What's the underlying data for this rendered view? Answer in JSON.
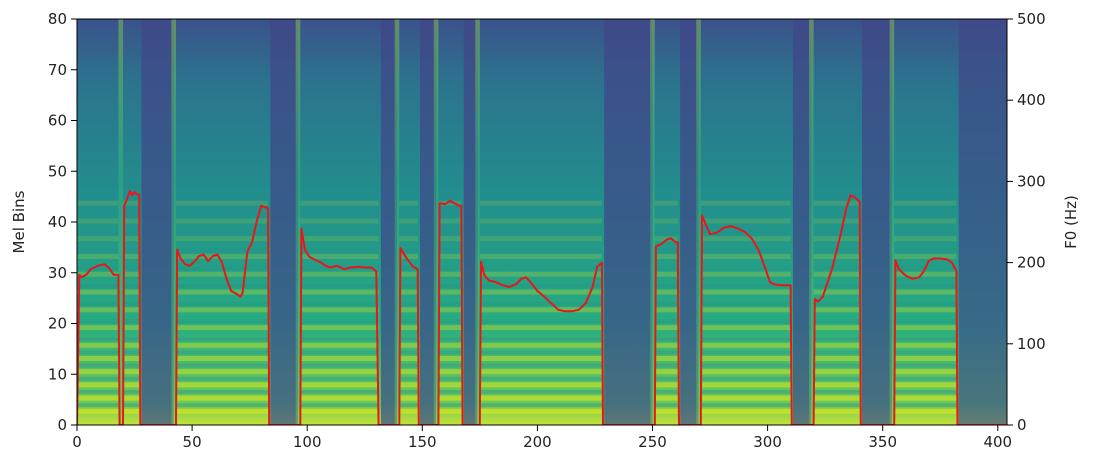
{
  "chart_data": {
    "type": "heatmap",
    "title": "",
    "xlabel": "",
    "ylabel": "Mel Bins",
    "y2label": "F0 (Hz)",
    "xlim": [
      0,
      404
    ],
    "ylim": [
      0,
      80
    ],
    "y2lim": [
      0,
      500
    ],
    "xticks": [
      "0",
      "50",
      "100",
      "150",
      "200",
      "250",
      "300",
      "350",
      "400"
    ],
    "yticks": [
      "0",
      "10",
      "20",
      "30",
      "40",
      "50",
      "60",
      "70",
      "80"
    ],
    "y2ticks": [
      "0",
      "100",
      "200",
      "300",
      "400",
      "500"
    ],
    "colormap": "viridis",
    "line_color": "#e8161a",
    "grid": false,
    "legend": "none",
    "voiced_segments": [
      {
        "start": 0,
        "end": 18
      },
      {
        "start": 20,
        "end": 27
      },
      {
        "start": 43,
        "end": 83
      },
      {
        "start": 97,
        "end": 131
      },
      {
        "start": 140,
        "end": 148
      },
      {
        "start": 157,
        "end": 167
      },
      {
        "start": 175,
        "end": 228
      },
      {
        "start": 251,
        "end": 261
      },
      {
        "start": 271,
        "end": 310
      },
      {
        "start": 320,
        "end": 340
      },
      {
        "start": 355,
        "end": 382
      }
    ],
    "series": [
      {
        "values": [
          [
            0,
            0
          ],
          [
            1,
            185
          ],
          [
            2,
            182
          ],
          [
            4,
            185
          ],
          [
            6,
            192
          ],
          [
            9,
            196
          ],
          [
            12,
            198
          ],
          [
            14,
            193
          ],
          [
            16,
            185
          ],
          [
            18,
            185
          ],
          [
            18.5,
            0
          ],
          [
            19,
            0
          ],
          [
            20,
            0
          ],
          [
            20.5,
            270
          ],
          [
            22,
            280
          ],
          [
            23,
            288
          ],
          [
            24,
            283
          ],
          [
            25,
            287
          ],
          [
            26,
            284
          ],
          [
            27,
            284
          ],
          [
            27.5,
            0
          ],
          [
            43,
            0
          ],
          [
            43.5,
            216
          ],
          [
            45,
            205
          ],
          [
            47,
            198
          ],
          [
            49,
            196
          ],
          [
            51,
            201
          ],
          [
            53,
            208
          ],
          [
            55,
            210
          ],
          [
            57,
            202
          ],
          [
            59,
            208
          ],
          [
            61,
            210
          ],
          [
            63,
            200
          ],
          [
            65,
            180
          ],
          [
            67,
            165
          ],
          [
            69,
            162
          ],
          [
            71,
            158
          ],
          [
            72,
            163
          ],
          [
            74,
            213
          ],
          [
            76,
            225
          ],
          [
            78,
            250
          ],
          [
            80,
            270
          ],
          [
            82,
            268
          ],
          [
            83,
            267
          ],
          [
            83.5,
            0
          ],
          [
            97,
            0
          ],
          [
            97.5,
            242
          ],
          [
            99,
            216
          ],
          [
            101,
            207
          ],
          [
            103,
            204
          ],
          [
            106,
            200
          ],
          [
            108,
            196
          ],
          [
            110,
            194
          ],
          [
            113,
            196
          ],
          [
            116,
            192
          ],
          [
            119,
            194
          ],
          [
            122,
            195
          ],
          [
            125,
            194
          ],
          [
            128,
            194
          ],
          [
            130,
            189
          ],
          [
            131,
            0
          ],
          [
            140,
            0
          ],
          [
            140.5,
            218
          ],
          [
            143,
            206
          ],
          [
            146,
            195
          ],
          [
            148,
            192
          ],
          [
            148.5,
            0
          ],
          [
            157,
            0
          ],
          [
            157.5,
            273
          ],
          [
            160,
            272
          ],
          [
            162,
            276
          ],
          [
            164,
            273
          ],
          [
            166,
            270
          ],
          [
            167,
            270
          ],
          [
            167.5,
            0
          ],
          [
            175,
            0
          ],
          [
            175.5,
            201
          ],
          [
            177,
            184
          ],
          [
            179,
            178
          ],
          [
            182,
            176
          ],
          [
            185,
            172
          ],
          [
            188,
            170
          ],
          [
            191,
            174
          ],
          [
            193,
            180
          ],
          [
            195,
            182
          ],
          [
            197,
            176
          ],
          [
            200,
            165
          ],
          [
            203,
            158
          ],
          [
            206,
            150
          ],
          [
            209,
            142
          ],
          [
            212,
            140
          ],
          [
            215,
            140
          ],
          [
            218,
            142
          ],
          [
            221,
            150
          ],
          [
            224,
            170
          ],
          [
            226,
            195
          ],
          [
            228,
            200
          ],
          [
            228.5,
            0
          ],
          [
            251,
            0
          ],
          [
            251.5,
            220
          ],
          [
            254,
            223
          ],
          [
            256,
            228
          ],
          [
            258,
            230
          ],
          [
            260,
            225
          ],
          [
            261,
            225
          ],
          [
            261.5,
            0
          ],
          [
            271,
            0
          ],
          [
            271.5,
            258
          ],
          [
            273,
            248
          ],
          [
            275,
            235
          ],
          [
            278,
            237
          ],
          [
            281,
            243
          ],
          [
            284,
            245
          ],
          [
            287,
            242
          ],
          [
            290,
            238
          ],
          [
            293,
            230
          ],
          [
            296,
            216
          ],
          [
            299,
            193
          ],
          [
            301,
            176
          ],
          [
            303,
            173
          ],
          [
            306,
            172
          ],
          [
            308,
            172
          ],
          [
            310,
            172
          ],
          [
            310.5,
            0
          ],
          [
            320,
            0
          ],
          [
            320.5,
            155
          ],
          [
            322,
            152
          ],
          [
            324,
            158
          ],
          [
            326,
            175
          ],
          [
            328,
            192
          ],
          [
            330,
            215
          ],
          [
            332,
            238
          ],
          [
            334,
            265
          ],
          [
            336,
            283
          ],
          [
            338,
            280
          ],
          [
            340,
            275
          ],
          [
            340.5,
            0
          ],
          [
            355,
            0
          ],
          [
            355.5,
            203
          ],
          [
            357,
            192
          ],
          [
            360,
            184
          ],
          [
            363,
            180
          ],
          [
            366,
            182
          ],
          [
            368,
            190
          ],
          [
            370,
            202
          ],
          [
            372,
            205
          ],
          [
            375,
            205
          ],
          [
            378,
            204
          ],
          [
            380,
            200
          ],
          [
            382,
            190
          ],
          [
            382.5,
            0
          ],
          [
            384,
            0
          ],
          [
            404,
            0
          ]
        ]
      }
    ]
  }
}
